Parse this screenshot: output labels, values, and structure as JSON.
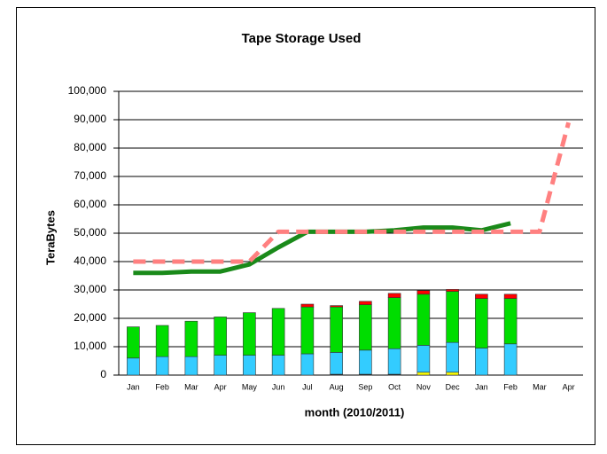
{
  "chart_data": {
    "type": "bar-line",
    "title": "Tape Storage Used",
    "y_label": "TeraBytes",
    "x_label": "month (2010/2011)",
    "categories": [
      "Jan",
      "Feb",
      "Mar",
      "Apr",
      "May",
      "Jun",
      "Jul",
      "Aug",
      "Sep",
      "Oct",
      "Nov",
      "Dec",
      "Jan",
      "Feb",
      "Mar",
      "Apr"
    ],
    "ylim": [
      0,
      100000
    ],
    "yticks": [
      0,
      {
        "value": 10000,
        "label": "10,000"
      },
      {
        "value": 20000,
        "label": "20,000"
      },
      {
        "value": 30000,
        "label": "30,000"
      },
      {
        "value": 40000,
        "label": "40,000"
      },
      {
        "value": 50000,
        "label": "50,000"
      },
      {
        "value": 60000,
        "label": "60,000"
      },
      {
        "value": 70000,
        "label": "70,000"
      },
      {
        "value": 80000,
        "label": "80,000"
      },
      {
        "value": 90000,
        "label": "90,000"
      },
      {
        "value": 100000,
        "label": "100,000"
      }
    ],
    "grid": true,
    "series": [
      {
        "kind": "bar",
        "color": "#000000",
        "values": [
          0,
          0,
          0,
          0,
          0,
          0,
          0,
          300,
          300,
          300,
          0,
          0,
          0,
          0,
          null,
          null
        ]
      },
      {
        "kind": "bar",
        "color": "#ffff00",
        "values": [
          0,
          0,
          0,
          0,
          0,
          0,
          0,
          0,
          0,
          0,
          1000,
          1000,
          0,
          0,
          null,
          null
        ]
      },
      {
        "kind": "bar",
        "color": "#33ccff",
        "values": [
          6000,
          6500,
          6500,
          7000,
          7000,
          7000,
          7500,
          7700,
          8500,
          9000,
          9500,
          10500,
          9500,
          11000,
          null,
          null
        ]
      },
      {
        "kind": "bar",
        "color": "#00dd00",
        "values": [
          11000,
          11000,
          12500,
          13500,
          15000,
          16500,
          16500,
          16000,
          16000,
          18000,
          18000,
          18000,
          17500,
          16000,
          null,
          null
        ]
      },
      {
        "kind": "bar",
        "color": "#ff0000",
        "values": [
          0,
          0,
          0,
          0,
          0,
          0,
          1000,
          500,
          1200,
          1500,
          1300,
          700,
          1500,
          1500,
          null,
          null
        ]
      },
      {
        "kind": "line",
        "color": "#1a8a1a",
        "values": [
          36000,
          36000,
          36500,
          36500,
          39000,
          45000,
          50500,
          50500,
          50500,
          51000,
          52000,
          52000,
          51000,
          53500,
          null,
          null
        ]
      },
      {
        "kind": "dashed-line",
        "color": "#ff8080",
        "values": [
          40000,
          40000,
          40000,
          40000,
          40000,
          50500,
          50500,
          50500,
          50500,
          50500,
          50500,
          50500,
          50500,
          50500,
          50500,
          89000
        ]
      }
    ]
  }
}
